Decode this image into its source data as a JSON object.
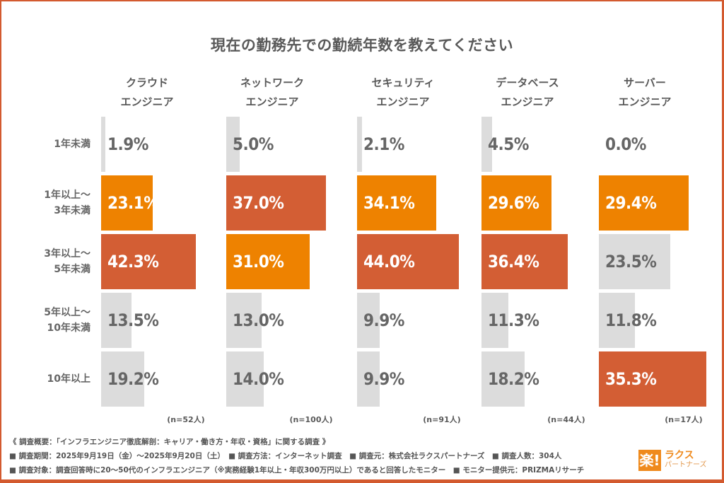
{
  "colors": {
    "frame": "#d35a2f",
    "highlight_top": "#d35e34",
    "highlight_second": "#ee8200",
    "other": "#dcdcdc",
    "label_dark": "#666666",
    "label_light": "#ffffff"
  },
  "chart_data": {
    "type": "bar",
    "orientation": "horizontal",
    "title": "現在の勤務先での勤続年数を教えてください",
    "categories": [
      "1年未満",
      "1年以上〜\n3年未満",
      "3年以上〜\n5年未満",
      "5年以上〜\n10年未満",
      "10年以上"
    ],
    "category_lines": [
      [
        "1年未満"
      ],
      [
        "1年以上〜",
        "3年未満"
      ],
      [
        "3年以上〜",
        "5年未満"
      ],
      [
        "5年以上〜",
        "10年未満"
      ],
      [
        "10年以上"
      ]
    ],
    "unit": "%",
    "series": [
      {
        "name": "クラウドエンジニア",
        "header": [
          "クラウド",
          "エンジニア"
        ],
        "n": "(n=52人)",
        "values": [
          1.9,
          23.1,
          42.3,
          13.5,
          19.2
        ],
        "rank": [
          0,
          2,
          1,
          0,
          0
        ]
      },
      {
        "name": "ネットワークエンジニア",
        "header": [
          "ネットワーク",
          "エンジニア"
        ],
        "n": "(n=100人)",
        "values": [
          5.0,
          37.0,
          31.0,
          13.0,
          14.0
        ],
        "rank": [
          0,
          1,
          2,
          0,
          0
        ]
      },
      {
        "name": "セキュリティエンジニア",
        "header": [
          "セキュリティ",
          "エンジニア"
        ],
        "n": "(n=91人)",
        "values": [
          2.1,
          34.1,
          44.0,
          9.9,
          9.9
        ],
        "rank": [
          0,
          2,
          1,
          0,
          0
        ]
      },
      {
        "name": "データベースエンジニア",
        "header": [
          "データベース",
          "エンジニア"
        ],
        "n": "(n=44人)",
        "values": [
          4.5,
          29.6,
          36.4,
          11.3,
          18.2
        ],
        "rank": [
          0,
          2,
          1,
          0,
          0
        ]
      },
      {
        "name": "サーバーエンジニア",
        "header": [
          "サーバー",
          "エンジニア"
        ],
        "n": "(n=17人)",
        "values": [
          0.0,
          29.4,
          23.5,
          11.8,
          35.3
        ],
        "rank": [
          0,
          2,
          0,
          0,
          1
        ]
      }
    ],
    "legend": "none",
    "grid": false
  },
  "footer": {
    "overview": "《 調査概要：「インフラエンジニア徹底解剖：キャリア・働き方・年収・資格」に関する調査 》",
    "line2": "■ 調査期間：2025年9月19日（金）〜2025年9月20日（土）　■ 調査方法：インターネット調査　■ 調査元：株式会社ラクスパートナーズ　■ 調査人数：304人",
    "line3": "■ 調査対象：調査回答時に20〜50代のインフラエンジニア（※実務経験1年以上・年収300万円以上）であると回答したモニター　■ モニター提供元：PRIZMAリサーチ"
  },
  "logo": {
    "mark": "楽!",
    "line1": "ラクス",
    "line2": "パートナーズ"
  }
}
